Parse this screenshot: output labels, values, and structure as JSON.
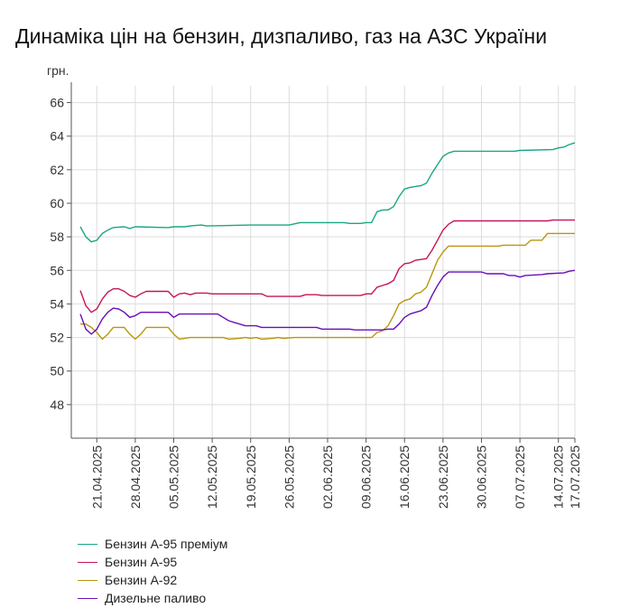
{
  "chart_data": {
    "type": "line",
    "title": "Динаміка цін на бензин, дизпаливо, газ на АЗС України",
    "ylabel": "грн.",
    "xlabel": "",
    "ylim": [
      46,
      67
    ],
    "yticks": [
      48,
      50,
      52,
      54,
      56,
      58,
      60,
      62,
      64,
      66
    ],
    "x_start": "2025-04-18",
    "x_end": "2025-07-17",
    "xticks": [
      {
        "date": "2025-04-21",
        "label": "21.04.2025"
      },
      {
        "date": "2025-04-28",
        "label": "28.04.2025"
      },
      {
        "date": "2025-05-05",
        "label": "05.05.2025"
      },
      {
        "date": "2025-05-12",
        "label": "12.05.2025"
      },
      {
        "date": "2025-05-19",
        "label": "19.05.2025"
      },
      {
        "date": "2025-05-26",
        "label": "26.05.2025"
      },
      {
        "date": "2025-06-02",
        "label": "02.06.2025"
      },
      {
        "date": "2025-06-09",
        "label": "09.06.2025"
      },
      {
        "date": "2025-06-16",
        "label": "16.06.2025"
      },
      {
        "date": "2025-06-23",
        "label": "23.06.2025"
      },
      {
        "date": "2025-06-30",
        "label": "30.06.2025"
      },
      {
        "date": "2025-07-07",
        "label": "07.07.2025"
      },
      {
        "date": "2025-07-14",
        "label": "14.07.2025"
      },
      {
        "date": "2025-07-17",
        "label": "17.07.2025"
      }
    ],
    "grid": true,
    "legend_position": "bottom-left",
    "series": [
      {
        "name": "Бензин А-95 преміум",
        "color": "#1aa684",
        "points": [
          [
            "2025-04-18",
            58.6
          ],
          [
            "2025-04-19",
            58.0
          ],
          [
            "2025-04-20",
            57.7
          ],
          [
            "2025-04-21",
            57.8
          ],
          [
            "2025-04-22",
            58.2
          ],
          [
            "2025-04-23",
            58.4
          ],
          [
            "2025-04-24",
            58.55
          ],
          [
            "2025-04-26",
            58.6
          ],
          [
            "2025-04-27",
            58.5
          ],
          [
            "2025-04-28",
            58.6
          ],
          [
            "2025-05-04",
            58.55
          ],
          [
            "2025-05-05",
            58.6
          ],
          [
            "2025-05-07",
            58.6
          ],
          [
            "2025-05-08",
            58.65
          ],
          [
            "2025-05-10",
            58.7
          ],
          [
            "2025-05-11",
            58.65
          ],
          [
            "2025-05-19",
            58.7
          ],
          [
            "2025-05-26",
            58.7
          ],
          [
            "2025-05-28",
            58.85
          ],
          [
            "2025-06-05",
            58.85
          ],
          [
            "2025-06-06",
            58.8
          ],
          [
            "2025-06-08",
            58.8
          ],
          [
            "2025-06-09",
            58.85
          ],
          [
            "2025-06-10",
            58.85
          ],
          [
            "2025-06-11",
            59.5
          ],
          [
            "2025-06-12",
            59.6
          ],
          [
            "2025-06-13",
            59.6
          ],
          [
            "2025-06-14",
            59.8
          ],
          [
            "2025-06-15",
            60.4
          ],
          [
            "2025-06-16",
            60.85
          ],
          [
            "2025-06-17",
            60.95
          ],
          [
            "2025-06-18",
            61.0
          ],
          [
            "2025-06-19",
            61.05
          ],
          [
            "2025-06-20",
            61.2
          ],
          [
            "2025-06-21",
            61.8
          ],
          [
            "2025-06-22",
            62.3
          ],
          [
            "2025-06-23",
            62.8
          ],
          [
            "2025-06-24",
            63.0
          ],
          [
            "2025-06-25",
            63.1
          ],
          [
            "2025-07-06",
            63.1
          ],
          [
            "2025-07-07",
            63.15
          ],
          [
            "2025-07-13",
            63.2
          ],
          [
            "2025-07-14",
            63.3
          ],
          [
            "2025-07-15",
            63.35
          ],
          [
            "2025-07-16",
            63.5
          ],
          [
            "2025-07-17",
            63.6
          ]
        ]
      },
      {
        "name": "Бензин А-95",
        "color": "#c4155a",
        "points": [
          [
            "2025-04-18",
            54.8
          ],
          [
            "2025-04-19",
            53.9
          ],
          [
            "2025-04-20",
            53.5
          ],
          [
            "2025-04-21",
            53.7
          ],
          [
            "2025-04-22",
            54.3
          ],
          [
            "2025-04-23",
            54.7
          ],
          [
            "2025-04-24",
            54.9
          ],
          [
            "2025-04-25",
            54.9
          ],
          [
            "2025-04-26",
            54.75
          ],
          [
            "2025-04-27",
            54.5
          ],
          [
            "2025-04-28",
            54.4
          ],
          [
            "2025-04-29",
            54.6
          ],
          [
            "2025-04-30",
            54.75
          ],
          [
            "2025-05-04",
            54.75
          ],
          [
            "2025-05-05",
            54.4
          ],
          [
            "2025-05-06",
            54.6
          ],
          [
            "2025-05-07",
            54.65
          ],
          [
            "2025-05-08",
            54.55
          ],
          [
            "2025-05-09",
            54.65
          ],
          [
            "2025-05-11",
            54.65
          ],
          [
            "2025-05-12",
            54.6
          ],
          [
            "2025-05-21",
            54.6
          ],
          [
            "2025-05-22",
            54.45
          ],
          [
            "2025-05-28",
            54.45
          ],
          [
            "2025-05-29",
            54.55
          ],
          [
            "2025-05-31",
            54.55
          ],
          [
            "2025-06-01",
            54.5
          ],
          [
            "2025-06-08",
            54.5
          ],
          [
            "2025-06-09",
            54.6
          ],
          [
            "2025-06-10",
            54.6
          ],
          [
            "2025-06-11",
            55.0
          ],
          [
            "2025-06-12",
            55.1
          ],
          [
            "2025-06-13",
            55.2
          ],
          [
            "2025-06-14",
            55.4
          ],
          [
            "2025-06-15",
            56.1
          ],
          [
            "2025-06-16",
            56.4
          ],
          [
            "2025-06-17",
            56.45
          ],
          [
            "2025-06-18",
            56.6
          ],
          [
            "2025-06-19",
            56.65
          ],
          [
            "2025-06-20",
            56.7
          ],
          [
            "2025-06-21",
            57.2
          ],
          [
            "2025-06-22",
            57.8
          ],
          [
            "2025-06-23",
            58.4
          ],
          [
            "2025-06-24",
            58.75
          ],
          [
            "2025-06-25",
            58.95
          ],
          [
            "2025-07-12",
            58.95
          ],
          [
            "2025-07-13",
            59.0
          ],
          [
            "2025-07-17",
            59.0
          ]
        ]
      },
      {
        "name": "Бензин А-92",
        "color": "#b8960f",
        "points": [
          [
            "2025-04-18",
            52.8
          ],
          [
            "2025-04-19",
            52.8
          ],
          [
            "2025-04-20",
            52.6
          ],
          [
            "2025-04-21",
            52.3
          ],
          [
            "2025-04-22",
            51.9
          ],
          [
            "2025-04-23",
            52.2
          ],
          [
            "2025-04-24",
            52.6
          ],
          [
            "2025-04-26",
            52.6
          ],
          [
            "2025-04-27",
            52.2
          ],
          [
            "2025-04-28",
            51.9
          ],
          [
            "2025-04-29",
            52.2
          ],
          [
            "2025-04-30",
            52.6
          ],
          [
            "2025-05-04",
            52.6
          ],
          [
            "2025-05-05",
            52.2
          ],
          [
            "2025-05-06",
            51.9
          ],
          [
            "2025-05-08",
            52.0
          ],
          [
            "2025-05-14",
            52.0
          ],
          [
            "2025-05-15",
            51.9
          ],
          [
            "2025-05-17",
            51.95
          ],
          [
            "2025-05-18",
            52.0
          ],
          [
            "2025-05-19",
            51.95
          ],
          [
            "2025-05-20",
            52.0
          ],
          [
            "2025-05-21",
            51.9
          ],
          [
            "2025-05-23",
            51.95
          ],
          [
            "2025-05-24",
            52.0
          ],
          [
            "2025-05-25",
            51.95
          ],
          [
            "2025-05-27",
            52.0
          ],
          [
            "2025-06-10",
            52.0
          ],
          [
            "2025-06-11",
            52.3
          ],
          [
            "2025-06-12",
            52.4
          ],
          [
            "2025-06-13",
            52.7
          ],
          [
            "2025-06-14",
            53.3
          ],
          [
            "2025-06-15",
            54.0
          ],
          [
            "2025-06-16",
            54.2
          ],
          [
            "2025-06-17",
            54.3
          ],
          [
            "2025-06-18",
            54.6
          ],
          [
            "2025-06-19",
            54.7
          ],
          [
            "2025-06-20",
            55.0
          ],
          [
            "2025-06-21",
            55.8
          ],
          [
            "2025-06-22",
            56.6
          ],
          [
            "2025-06-23",
            57.1
          ],
          [
            "2025-06-24",
            57.45
          ],
          [
            "2025-07-03",
            57.45
          ],
          [
            "2025-07-04",
            57.5
          ],
          [
            "2025-07-08",
            57.5
          ],
          [
            "2025-07-09",
            57.8
          ],
          [
            "2025-07-11",
            57.8
          ],
          [
            "2025-07-12",
            58.2
          ],
          [
            "2025-07-17",
            58.2
          ]
        ]
      },
      {
        "name": "Дизельне паливо",
        "color": "#6a0fb8",
        "points": [
          [
            "2025-04-18",
            53.4
          ],
          [
            "2025-04-19",
            52.5
          ],
          [
            "2025-04-20",
            52.2
          ],
          [
            "2025-04-21",
            52.5
          ],
          [
            "2025-04-22",
            53.1
          ],
          [
            "2025-04-23",
            53.5
          ],
          [
            "2025-04-24",
            53.75
          ],
          [
            "2025-04-25",
            53.7
          ],
          [
            "2025-04-26",
            53.5
          ],
          [
            "2025-04-27",
            53.2
          ],
          [
            "2025-04-28",
            53.3
          ],
          [
            "2025-04-29",
            53.5
          ],
          [
            "2025-05-04",
            53.5
          ],
          [
            "2025-05-05",
            53.2
          ],
          [
            "2025-05-06",
            53.4
          ],
          [
            "2025-05-13",
            53.4
          ],
          [
            "2025-05-14",
            53.2
          ],
          [
            "2025-05-15",
            53.0
          ],
          [
            "2025-05-16",
            52.9
          ],
          [
            "2025-05-17",
            52.8
          ],
          [
            "2025-05-18",
            52.7
          ],
          [
            "2025-05-20",
            52.7
          ],
          [
            "2025-05-21",
            52.6
          ],
          [
            "2025-05-31",
            52.6
          ],
          [
            "2025-06-01",
            52.5
          ],
          [
            "2025-06-06",
            52.5
          ],
          [
            "2025-06-07",
            52.45
          ],
          [
            "2025-06-12",
            52.45
          ],
          [
            "2025-06-13",
            52.5
          ],
          [
            "2025-06-14",
            52.5
          ],
          [
            "2025-06-15",
            52.8
          ],
          [
            "2025-06-16",
            53.2
          ],
          [
            "2025-06-17",
            53.4
          ],
          [
            "2025-06-18",
            53.5
          ],
          [
            "2025-06-19",
            53.6
          ],
          [
            "2025-06-20",
            53.8
          ],
          [
            "2025-06-21",
            54.5
          ],
          [
            "2025-06-22",
            55.1
          ],
          [
            "2025-06-23",
            55.6
          ],
          [
            "2025-06-24",
            55.9
          ],
          [
            "2025-06-30",
            55.9
          ],
          [
            "2025-07-01",
            55.8
          ],
          [
            "2025-07-04",
            55.8
          ],
          [
            "2025-07-05",
            55.7
          ],
          [
            "2025-07-06",
            55.7
          ],
          [
            "2025-07-07",
            55.6
          ],
          [
            "2025-07-08",
            55.7
          ],
          [
            "2025-07-11",
            55.75
          ],
          [
            "2025-07-12",
            55.8
          ],
          [
            "2025-07-15",
            55.85
          ],
          [
            "2025-07-16",
            55.95
          ],
          [
            "2025-07-17",
            56.0
          ]
        ]
      }
    ]
  }
}
